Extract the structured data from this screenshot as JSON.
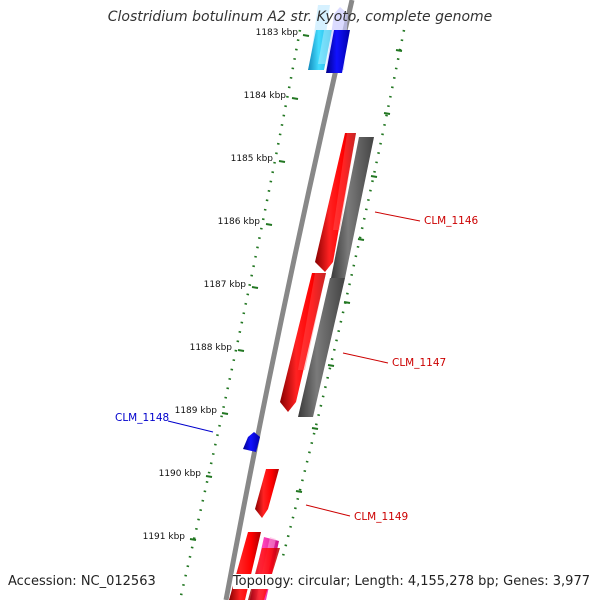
{
  "title": "Clostridium botulinum A2 str. Kyoto, complete genome",
  "accession": "Accession: NC_012563",
  "topology": "Topology: circular; Length: 4,155,278 bp; Genes: 3,977",
  "ruler": {
    "ticks": [
      "1183 kbp",
      "1184 kbp",
      "1185 kbp",
      "1186 kbp",
      "1187 kbp",
      "1188 kbp",
      "1189 kbp",
      "1190 kbp",
      "1191 kbp"
    ]
  },
  "genes": [
    {
      "label": "CLM_1146",
      "color": "#cc0000"
    },
    {
      "label": "CLM_1147",
      "color": "#cc0000"
    },
    {
      "label": "CLM_1148",
      "color": "#0000cc"
    },
    {
      "label": "CLM_1149",
      "color": "#cc0000"
    }
  ],
  "colors": {
    "cds": "#ff0000",
    "gene": "#666666",
    "gene_blue": "#0000ee",
    "cyan": "#33ccee",
    "pink": "#ff33aa",
    "ruler": "#227722",
    "backbone": "#888888"
  }
}
